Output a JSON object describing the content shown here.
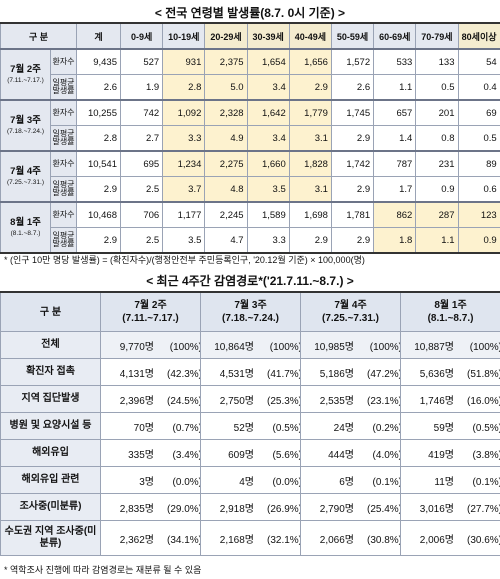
{
  "table1": {
    "title": "< 전국 연령별 발생률(8.7. 0시 기준) >",
    "corner": "구 분",
    "headers": [
      "계",
      "0-9세",
      "10-19세",
      "20-29세",
      "30-39세",
      "40-49세",
      "50-59세",
      "60-69세",
      "70-79세",
      "80세이상"
    ],
    "weeks": [
      {
        "name": "7월 2주",
        "period": "(7.11.~7.17.)",
        "rows": [
          {
            "label": "환자수",
            "values": [
              "9,435",
              "527",
              "931",
              "2,375",
              "1,654",
              "1,656",
              "1,572",
              "533",
              "133",
              "54"
            ]
          },
          {
            "label": "일평균 발생률",
            "values": [
              "2.6",
              "1.9",
              "2.8",
              "5.0",
              "3.4",
              "2.9",
              "2.6",
              "1.1",
              "0.5",
              "0.4"
            ]
          }
        ]
      },
      {
        "name": "7월 3주",
        "period": "(7.18.~7.24.)",
        "rows": [
          {
            "label": "환자수",
            "values": [
              "10,255",
              "742",
              "1,092",
              "2,328",
              "1,642",
              "1,779",
              "1,745",
              "657",
              "201",
              "69"
            ]
          },
          {
            "label": "일평균 발생률",
            "values": [
              "2.8",
              "2.7",
              "3.3",
              "4.9",
              "3.4",
              "3.1",
              "2.9",
              "1.4",
              "0.8",
              "0.5"
            ]
          }
        ]
      },
      {
        "name": "7월 4주",
        "period": "(7.25.~7.31.)",
        "rows": [
          {
            "label": "환자수",
            "values": [
              "10,541",
              "695",
              "1,234",
              "2,275",
              "1,660",
              "1,828",
              "1,742",
              "787",
              "231",
              "89"
            ]
          },
          {
            "label": "일평균 발생률",
            "values": [
              "2.9",
              "2.5",
              "3.7",
              "4.8",
              "3.5",
              "3.1",
              "2.9",
              "1.7",
              "0.9",
              "0.6"
            ]
          }
        ]
      },
      {
        "name": "8월 1주",
        "period": "(8.1.~8.7.)",
        "rows": [
          {
            "label": "환자수",
            "values": [
              "10,468",
              "706",
              "1,177",
              "2,245",
              "1,589",
              "1,698",
              "1,781",
              "862",
              "287",
              "123"
            ]
          },
          {
            "label": "일평균 발생률",
            "values": [
              "2.9",
              "2.5",
              "3.5",
              "4.7",
              "3.3",
              "2.9",
              "2.9",
              "1.8",
              "1.1",
              "0.9"
            ]
          }
        ]
      }
    ]
  },
  "formula_note": "* (인구 10만 명당 발생률) = (확진자수)/(행정안전부 주민등록인구, '20.12월 기준) × 100,000(명)",
  "table2": {
    "title": "< 최근 4주간 감염경로*('21.7.11.~8.7.) >",
    "corner": "구 분",
    "columns": [
      {
        "name": "7월 2주",
        "period": "(7.11.~7.17.)"
      },
      {
        "name": "7월 3주",
        "period": "(7.18.~7.24.)"
      },
      {
        "name": "7월 4주",
        "period": "(7.25.~7.31.)"
      },
      {
        "name": "8월 1주",
        "period": "(8.1.~8.7.)"
      }
    ],
    "rows": [
      {
        "label": "전체",
        "cells": [
          {
            "count": "9,770명",
            "pct": "(100%)"
          },
          {
            "count": "10,864명",
            "pct": "(100%)"
          },
          {
            "count": "10,985명",
            "pct": "(100%)"
          },
          {
            "count": "10,887명",
            "pct": "(100%)"
          }
        ]
      },
      {
        "label": "확진자 접촉",
        "cells": [
          {
            "count": "4,131명",
            "pct": "(42.3%)"
          },
          {
            "count": "4,531명",
            "pct": "(41.7%)"
          },
          {
            "count": "5,186명",
            "pct": "(47.2%)"
          },
          {
            "count": "5,636명",
            "pct": "(51.8%)"
          }
        ]
      },
      {
        "label": "지역 집단발생",
        "cells": [
          {
            "count": "2,396명",
            "pct": "(24.5%)"
          },
          {
            "count": "2,750명",
            "pct": "(25.3%)"
          },
          {
            "count": "2,535명",
            "pct": "(23.1%)"
          },
          {
            "count": "1,746명",
            "pct": "(16.0%)"
          }
        ]
      },
      {
        "label": "병원 및 요양시설 등",
        "cells": [
          {
            "count": "70명",
            "pct": "(0.7%)"
          },
          {
            "count": "52명",
            "pct": "(0.5%)"
          },
          {
            "count": "24명",
            "pct": "(0.2%)"
          },
          {
            "count": "59명",
            "pct": "(0.5%)"
          }
        ]
      },
      {
        "label": "해외유입",
        "cells": [
          {
            "count": "335명",
            "pct": "(3.4%)"
          },
          {
            "count": "609명",
            "pct": "(5.6%)"
          },
          {
            "count": "444명",
            "pct": "(4.0%)"
          },
          {
            "count": "419명",
            "pct": "(3.8%)"
          }
        ]
      },
      {
        "label": "해외유입 관련",
        "cells": [
          {
            "count": "3명",
            "pct": "(0.0%)"
          },
          {
            "count": "4명",
            "pct": "(0.0%)"
          },
          {
            "count": "6명",
            "pct": "(0.1%)"
          },
          {
            "count": "11명",
            "pct": "(0.1%)"
          }
        ]
      },
      {
        "label": "조사중(미분류)",
        "cells": [
          {
            "count": "2,835명",
            "pct": "(29.0%)"
          },
          {
            "count": "2,918명",
            "pct": "(26.9%)"
          },
          {
            "count": "2,790명",
            "pct": "(25.4%)"
          },
          {
            "count": "3,016명",
            "pct": "(27.7%)"
          }
        ]
      },
      {
        "label": "수도권 지역 조사중(미분류)",
        "cells": [
          {
            "count": "2,362명",
            "pct": "(34.1%)"
          },
          {
            "count": "2,168명",
            "pct": "(32.1%)"
          },
          {
            "count": "2,066명",
            "pct": "(30.8%)"
          },
          {
            "count": "2,006명",
            "pct": "(30.6%)"
          }
        ]
      }
    ]
  },
  "footnote": "* 역학조사 진행에 따라 감염경로는 재분류 될 수 있음"
}
